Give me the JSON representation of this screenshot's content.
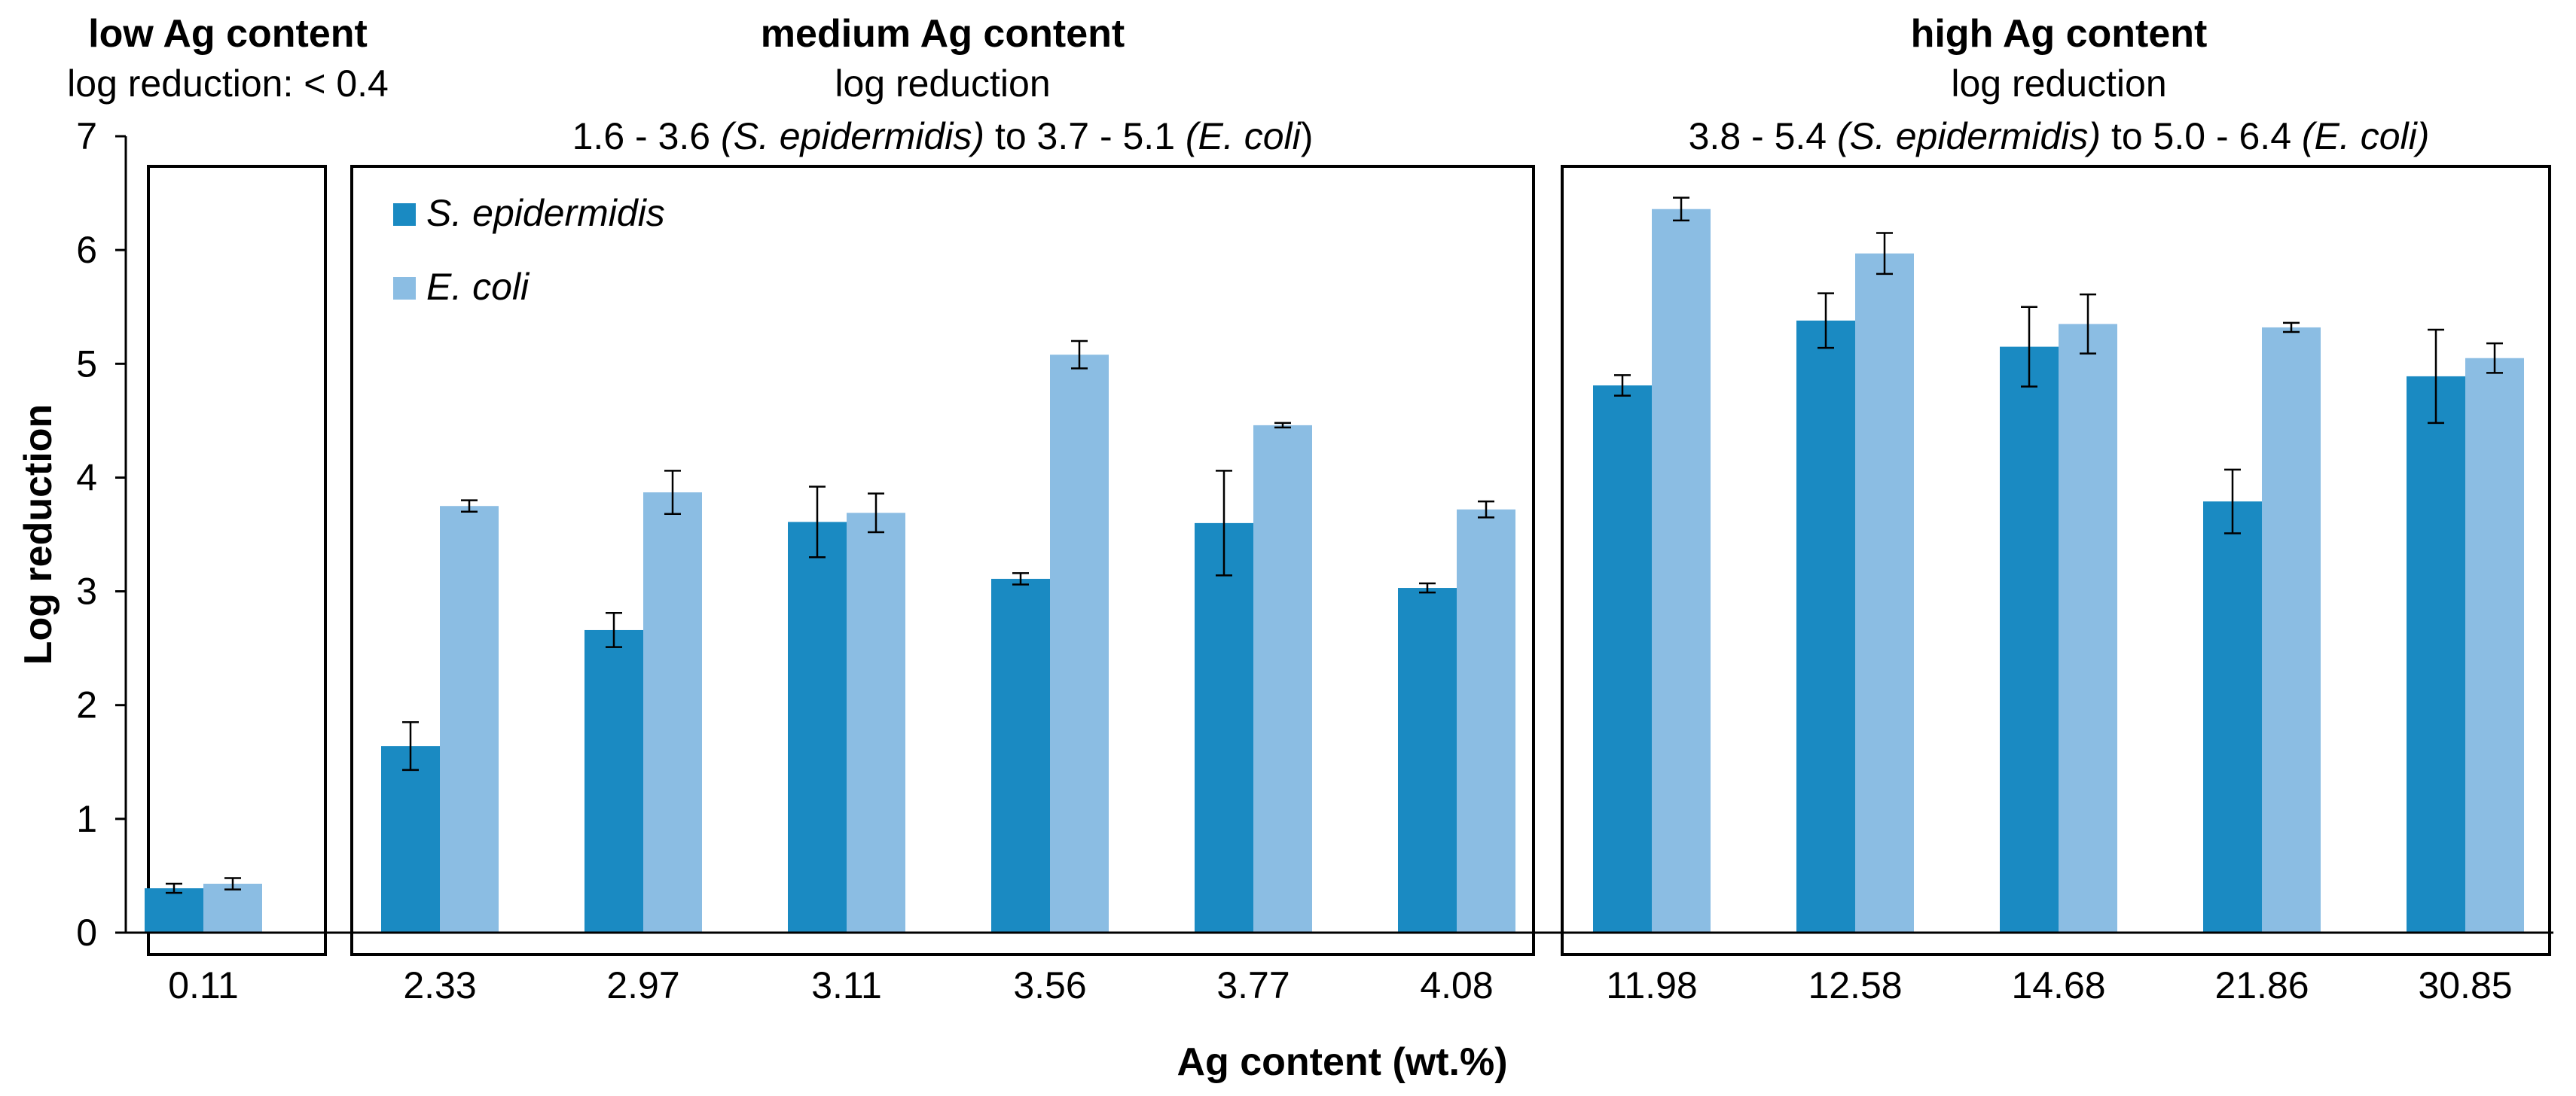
{
  "chart_data": {
    "type": "bar",
    "xlabel": "Ag content (wt.%)",
    "ylabel": "Log reduction",
    "ylim": [
      0,
      7
    ],
    "yticks": [
      "0",
      "1",
      "2",
      "3",
      "4",
      "5",
      "6",
      "7"
    ],
    "categories": [
      "0.11",
      "2.33",
      "2.97",
      "3.11",
      "3.56",
      "3.77",
      "4.08",
      "11.98",
      "12.58",
      "14.68",
      "21.86",
      "30.85"
    ],
    "series": [
      {
        "name": "S. epidermidis",
        "color": "#1a8ac2",
        "values": [
          0.39,
          1.64,
          2.66,
          3.61,
          3.11,
          3.6,
          3.03,
          4.81,
          5.38,
          5.15,
          3.79,
          4.89
        ],
        "errors": [
          0.04,
          0.21,
          0.15,
          0.31,
          0.05,
          0.46,
          0.04,
          0.09,
          0.24,
          0.35,
          0.28,
          0.41
        ]
      },
      {
        "name": "E. coli",
        "color": "#8bbde3",
        "values": [
          0.43,
          3.75,
          3.87,
          3.69,
          5.08,
          4.46,
          3.72,
          6.36,
          5.97,
          5.35,
          5.32,
          5.05
        ],
        "errors": [
          0.05,
          0.05,
          0.19,
          0.17,
          0.12,
          0.02,
          0.07,
          0.1,
          0.18,
          0.26,
          0.04,
          0.13
        ]
      }
    ],
    "groups": [
      {
        "key": "low",
        "count": 1,
        "title": "low Ag content",
        "lines": [
          [
            {
              "text": "log reduction: < 0.4",
              "italic": false
            }
          ]
        ]
      },
      {
        "key": "medium",
        "count": 6,
        "title": "medium Ag content",
        "lines": [
          [
            {
              "text": "log reduction",
              "italic": false
            }
          ],
          [
            {
              "text": "1.6 - 3.6 ",
              "italic": false
            },
            {
              "text": "(S. epidermidis)",
              "italic": true
            },
            {
              "text": " to 3.7 - 5.1 ",
              "italic": false
            },
            {
              "text": "(E. coli",
              "italic": true
            },
            {
              "text": ")",
              "italic": false
            }
          ]
        ]
      },
      {
        "key": "high",
        "count": 5,
        "title": "high Ag content",
        "lines": [
          [
            {
              "text": "log reduction",
              "italic": false
            }
          ],
          [
            {
              "text": "3.8 - 5.4 ",
              "italic": false
            },
            {
              "text": "(S. epidermidis)",
              "italic": true
            },
            {
              "text": " to 5.0 - 6.4 ",
              "italic": false
            },
            {
              "text": "(E. coli)",
              "italic": true
            }
          ]
        ]
      }
    ],
    "legend_position": "top-left"
  }
}
